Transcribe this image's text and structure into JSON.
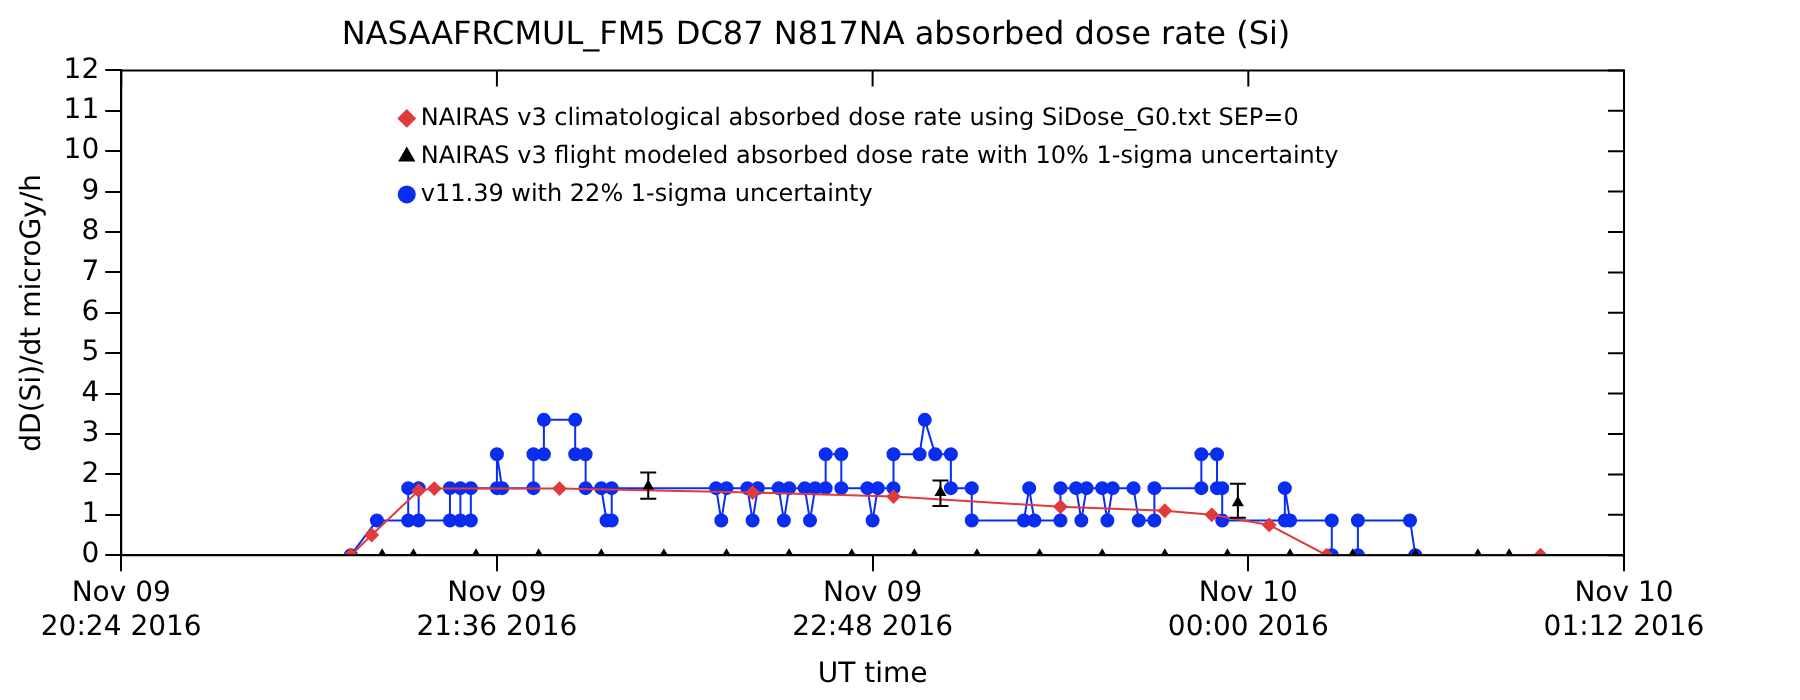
{
  "chart_data": {
    "type": "line",
    "title": "NASAAFRCMUL_FM5 DC87 N817NA absorbed dose rate (Si)",
    "xlabel": "UT time",
    "ylabel": "dD(Si)/dt microGy/h",
    "xlim": [
      "2016-11-09T20:24",
      "2016-11-10T01:12"
    ],
    "xticks": [
      {
        "value": "2016-11-09T20:24",
        "label": "Nov 09\n20:24 2016"
      },
      {
        "value": "2016-11-09T21:36",
        "label": "Nov 09\n21:36 2016"
      },
      {
        "value": "2016-11-09T22:48",
        "label": "Nov 09\n22:48 2016"
      },
      {
        "value": "2016-11-10T00:00",
        "label": "Nov 10\n00:00 2016"
      },
      {
        "value": "2016-11-10T01:12",
        "label": "Nov 10\n01:12 2016"
      }
    ],
    "ylim": [
      0,
      12
    ],
    "yticks": [
      0,
      1,
      2,
      3,
      4,
      5,
      6,
      7,
      8,
      9,
      10,
      11,
      12
    ],
    "grid": false,
    "legend": "top",
    "series": [
      {
        "name": "NAIRAS v3 climatological absorbed dose rate using SiDose_G0.txt SEP=0",
        "marker": "diamond",
        "color": "#e03a3a",
        "x": [
          "2016-11-09T21:08",
          "2016-11-09T21:12",
          "2016-11-09T21:21",
          "2016-11-09T21:24",
          "2016-11-09T21:48",
          "2016-11-09T22:25",
          "2016-11-09T22:52",
          "2016-11-09T23:24",
          "2016-11-09T23:44",
          "2016-11-09T23:53",
          "2016-11-10T00:04",
          "2016-11-10T00:15",
          "2016-11-10T00:56"
        ],
        "values": [
          0,
          0.5,
          1.6,
          1.65,
          1.65,
          1.55,
          1.45,
          1.2,
          1.1,
          1.0,
          0.75,
          0,
          0
        ]
      },
      {
        "name": "NAIRAS v3 flight modeled absorbed dose rate with 10% 1-sigma uncertainty",
        "type": "scatter",
        "marker": "triangle",
        "color": "#000000",
        "x": [
          "2016-11-09T21:14",
          "2016-11-09T21:20",
          "2016-11-09T21:32",
          "2016-11-09T21:44",
          "2016-11-09T21:56",
          "2016-11-09T22:05",
          "2016-11-09T22:08",
          "2016-11-09T22:20",
          "2016-11-09T22:32",
          "2016-11-09T22:44",
          "2016-11-09T22:56",
          "2016-11-09T23:01",
          "2016-11-09T23:08",
          "2016-11-09T23:20",
          "2016-11-09T23:32",
          "2016-11-09T23:44",
          "2016-11-09T23:56",
          "2016-11-09T23:58",
          "2016-11-10T00:08",
          "2016-11-10T00:20",
          "2016-11-10T00:32",
          "2016-11-10T00:44",
          "2016-11-10T00:50"
        ],
        "values": [
          0,
          0,
          0,
          0,
          0,
          1.7,
          0,
          0,
          0,
          0,
          0,
          1.55,
          0,
          0,
          0,
          0,
          0,
          1.3,
          0,
          0,
          0,
          0,
          0
        ],
        "errors": [
          null,
          null,
          null,
          null,
          null,
          [
            1.4,
            2.05
          ],
          null,
          null,
          null,
          null,
          null,
          [
            1.22,
            1.85
          ],
          null,
          null,
          null,
          null,
          null,
          [
            0.93,
            1.77
          ],
          null,
          null,
          null,
          null,
          null
        ]
      },
      {
        "name": "v11.39 with 22% 1-sigma uncertainty",
        "marker": "circle",
        "color": "#0a2ef0",
        "x": [
          "2016-11-09T21:08",
          "2016-11-09T21:13",
          "2016-11-09T21:19",
          "2016-11-09T21:19",
          "2016-11-09T21:21",
          "2016-11-09T21:21",
          "2016-11-09T21:27",
          "2016-11-09T21:27",
          "2016-11-09T21:29",
          "2016-11-09T21:29",
          "2016-11-09T21:31",
          "2016-11-09T21:31",
          "2016-11-09T21:36",
          "2016-11-09T21:36",
          "2016-11-09T21:37",
          "2016-11-09T21:43",
          "2016-11-09T21:43",
          "2016-11-09T21:45",
          "2016-11-09T21:45",
          "2016-11-09T21:51",
          "2016-11-09T21:51",
          "2016-11-09T21:53",
          "2016-11-09T21:53",
          "2016-11-09T21:56",
          "2016-11-09T21:57",
          "2016-11-09T21:58",
          "2016-11-09T21:58",
          "2016-11-09T22:18",
          "2016-11-09T22:19",
          "2016-11-09T22:20",
          "2016-11-09T22:24",
          "2016-11-09T22:25",
          "2016-11-09T22:26",
          "2016-11-09T22:30",
          "2016-11-09T22:31",
          "2016-11-09T22:32",
          "2016-11-09T22:35",
          "2016-11-09T22:36",
          "2016-11-09T22:37",
          "2016-11-09T22:39",
          "2016-11-09T22:39",
          "2016-11-09T22:42",
          "2016-11-09T22:42",
          "2016-11-09T22:47",
          "2016-11-09T22:48",
          "2016-11-09T22:49",
          "2016-11-09T22:52",
          "2016-11-09T22:52",
          "2016-11-09T22:57",
          "2016-11-09T22:58",
          "2016-11-09T23:00",
          "2016-11-09T23:03",
          "2016-11-09T23:03",
          "2016-11-09T23:07",
          "2016-11-09T23:07",
          "2016-11-09T23:17",
          "2016-11-09T23:18",
          "2016-11-09T23:19",
          "2016-11-09T23:24",
          "2016-11-09T23:24",
          "2016-11-09T23:27",
          "2016-11-09T23:28",
          "2016-11-09T23:29",
          "2016-11-09T23:32",
          "2016-11-09T23:33",
          "2016-11-09T23:34",
          "2016-11-09T23:38",
          "2016-11-09T23:39",
          "2016-11-09T23:42",
          "2016-11-09T23:42",
          "2016-11-09T23:51",
          "2016-11-09T23:51",
          "2016-11-09T23:54",
          "2016-11-09T23:54",
          "2016-11-09T23:55",
          "2016-11-09T23:55",
          "2016-11-10T00:07",
          "2016-11-10T00:07",
          "2016-11-10T00:08",
          "2016-11-10T00:16",
          "2016-11-10T00:16",
          "2016-11-10T00:21",
          "2016-11-10T00:21",
          "2016-11-10T00:31",
          "2016-11-10T00:32"
        ],
        "values": [
          0,
          0.86,
          0.86,
          1.66,
          1.66,
          0.86,
          0.86,
          1.66,
          1.66,
          0.86,
          0.86,
          1.66,
          1.66,
          2.5,
          1.66,
          1.66,
          2.5,
          2.5,
          3.35,
          3.35,
          2.5,
          2.5,
          1.66,
          1.66,
          0.86,
          0.86,
          1.66,
          1.66,
          0.86,
          1.66,
          1.66,
          0.86,
          1.66,
          1.66,
          0.86,
          1.66,
          1.66,
          0.86,
          1.66,
          1.66,
          2.5,
          2.5,
          1.66,
          1.66,
          0.86,
          1.66,
          1.66,
          2.5,
          2.5,
          3.35,
          2.5,
          2.5,
          1.66,
          1.66,
          0.86,
          0.86,
          1.66,
          0.86,
          0.86,
          1.66,
          1.66,
          0.86,
          1.66,
          1.66,
          0.86,
          1.66,
          1.66,
          0.86,
          0.86,
          1.66,
          1.66,
          2.5,
          2.5,
          1.66,
          1.66,
          0.86,
          0.86,
          1.66,
          0.86,
          0.86,
          0,
          0,
          0.86,
          0.86,
          0
        ]
      }
    ]
  }
}
